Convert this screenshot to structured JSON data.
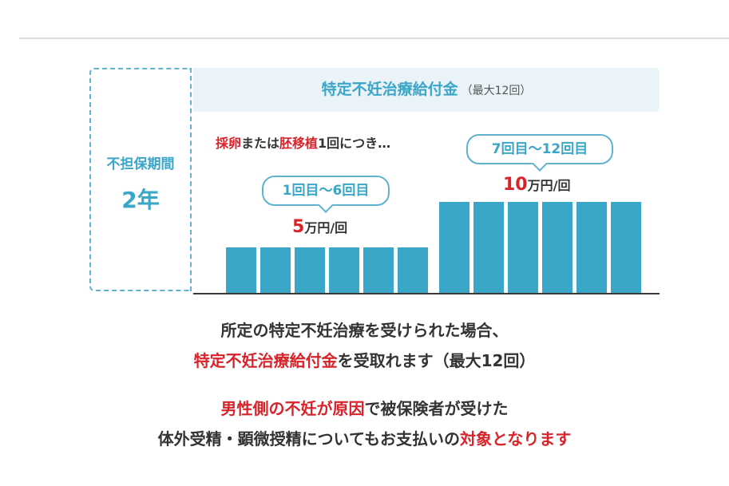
{
  "period": {
    "label": "不担保期間",
    "value": "2年"
  },
  "header": {
    "title": "特定不妊治療給付金",
    "sub": "（最大12回）"
  },
  "note": {
    "red1": "採卵",
    "mid1": "または",
    "red2": "胚移植",
    "rest": "1回につき…"
  },
  "tier1": {
    "label": "1回目〜6回目",
    "amount": "5",
    "unit": "万円/回"
  },
  "tier2": {
    "label": "7回目〜12回目",
    "amount": "10",
    "unit": "万円/回"
  },
  "captions": {
    "line1": "所定の特定不妊治療を受けられた場合、",
    "line2_red": "特定不妊治療給付金",
    "line2_rest": "を受取れます（最大12回）",
    "line3_red": "男性側の不妊が原因",
    "line3_rest": "で被保険者が受けた",
    "line4_pre": "体外受精・顕微授精についてもお支払いの",
    "line4_red": "対象となります"
  },
  "colors": {
    "bar": "#3aa6c8",
    "accent": "#d8232a",
    "border": "#5fb3cf"
  },
  "chart_data": {
    "type": "bar",
    "categories": [
      "1",
      "2",
      "3",
      "4",
      "5",
      "6",
      "7",
      "8",
      "9",
      "10",
      "11",
      "12"
    ],
    "values": [
      5,
      5,
      5,
      5,
      5,
      5,
      10,
      10,
      10,
      10,
      10,
      10
    ],
    "title": "特定不妊治療給付金（最大12回）",
    "xlabel": "",
    "ylabel": "",
    "ylim": [
      0,
      10
    ],
    "grid": false,
    "legend": "none"
  }
}
